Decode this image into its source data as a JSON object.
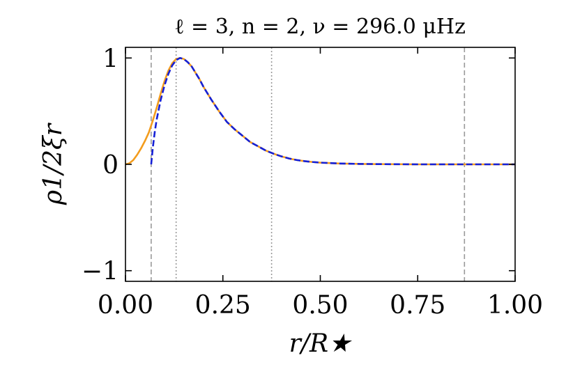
{
  "chart_data": {
    "type": "line",
    "title": "ℓ = 3,  n = 2,  ν = 296.0 μHz",
    "xlabel": "r/R★",
    "ylabel": "ρ1/2ξr",
    "xlim": [
      0.0,
      1.0
    ],
    "ylim": [
      -1.1,
      1.1
    ],
    "x_ticks": [
      0.0,
      0.25,
      0.5,
      0.75,
      1.0
    ],
    "x_tick_labels": [
      "0.00",
      "0.25",
      "0.50",
      "0.75",
      "1.00"
    ],
    "y_ticks": [
      -1,
      0,
      1
    ],
    "y_tick_labels": [
      "−1",
      "0",
      "1"
    ],
    "grid": false,
    "series": [
      {
        "style": "solid",
        "color": "#f39c1d",
        "x": [
          0.0,
          0.01,
          0.02,
          0.03,
          0.04,
          0.05,
          0.06,
          0.07,
          0.08,
          0.09,
          0.1,
          0.11,
          0.12,
          0.13,
          0.14,
          0.15,
          0.16,
          0.17,
          0.18,
          0.19,
          0.2,
          0.22,
          0.24,
          0.26,
          0.28,
          0.3,
          0.32,
          0.34,
          0.36,
          0.38,
          0.4,
          0.42,
          0.44,
          0.46,
          0.48,
          0.5,
          0.55,
          0.6,
          0.65,
          0.7,
          0.75,
          0.8,
          0.85,
          0.9,
          0.95,
          1.0
        ],
        "y": [
          0.0,
          0.01,
          0.04,
          0.09,
          0.15,
          0.22,
          0.3,
          0.41,
          0.53,
          0.66,
          0.78,
          0.88,
          0.95,
          0.99,
          1.0,
          0.99,
          0.96,
          0.92,
          0.86,
          0.8,
          0.73,
          0.61,
          0.5,
          0.4,
          0.33,
          0.27,
          0.21,
          0.17,
          0.13,
          0.1,
          0.075,
          0.055,
          0.04,
          0.03,
          0.022,
          0.016,
          0.008,
          0.004,
          0.002,
          0.001,
          0.0,
          0.0,
          0.0,
          0.0,
          0.0,
          0.0
        ]
      },
      {
        "style": "dashed",
        "color": "#1520d6",
        "x": [
          0.066,
          0.07,
          0.075,
          0.08,
          0.09,
          0.1,
          0.11,
          0.12,
          0.13,
          0.14,
          0.15,
          0.16,
          0.17,
          0.18,
          0.19,
          0.2,
          0.22,
          0.24,
          0.26,
          0.28,
          0.3,
          0.32,
          0.34,
          0.36,
          0.38,
          0.4,
          0.42,
          0.44,
          0.46,
          0.48,
          0.5,
          0.55,
          0.6,
          0.65,
          0.7,
          0.75,
          0.8,
          0.85,
          0.9,
          0.95,
          1.0
        ],
        "y": [
          0.0,
          0.15,
          0.3,
          0.42,
          0.6,
          0.74,
          0.85,
          0.93,
          0.98,
          1.0,
          0.99,
          0.96,
          0.92,
          0.86,
          0.8,
          0.73,
          0.61,
          0.5,
          0.4,
          0.33,
          0.27,
          0.21,
          0.17,
          0.13,
          0.1,
          0.075,
          0.055,
          0.04,
          0.03,
          0.022,
          0.016,
          0.008,
          0.004,
          0.002,
          0.001,
          0.0,
          0.0,
          0.0,
          0.0,
          0.0,
          0.0
        ]
      }
    ],
    "vlines": [
      {
        "x": 0.066,
        "style": "dashed",
        "color": "#999999"
      },
      {
        "x": 0.13,
        "style": "dotted",
        "color": "#999999"
      },
      {
        "x": 0.375,
        "style": "dotted",
        "color": "#999999"
      },
      {
        "x": 0.87,
        "style": "dashed",
        "color": "#999999"
      }
    ]
  }
}
